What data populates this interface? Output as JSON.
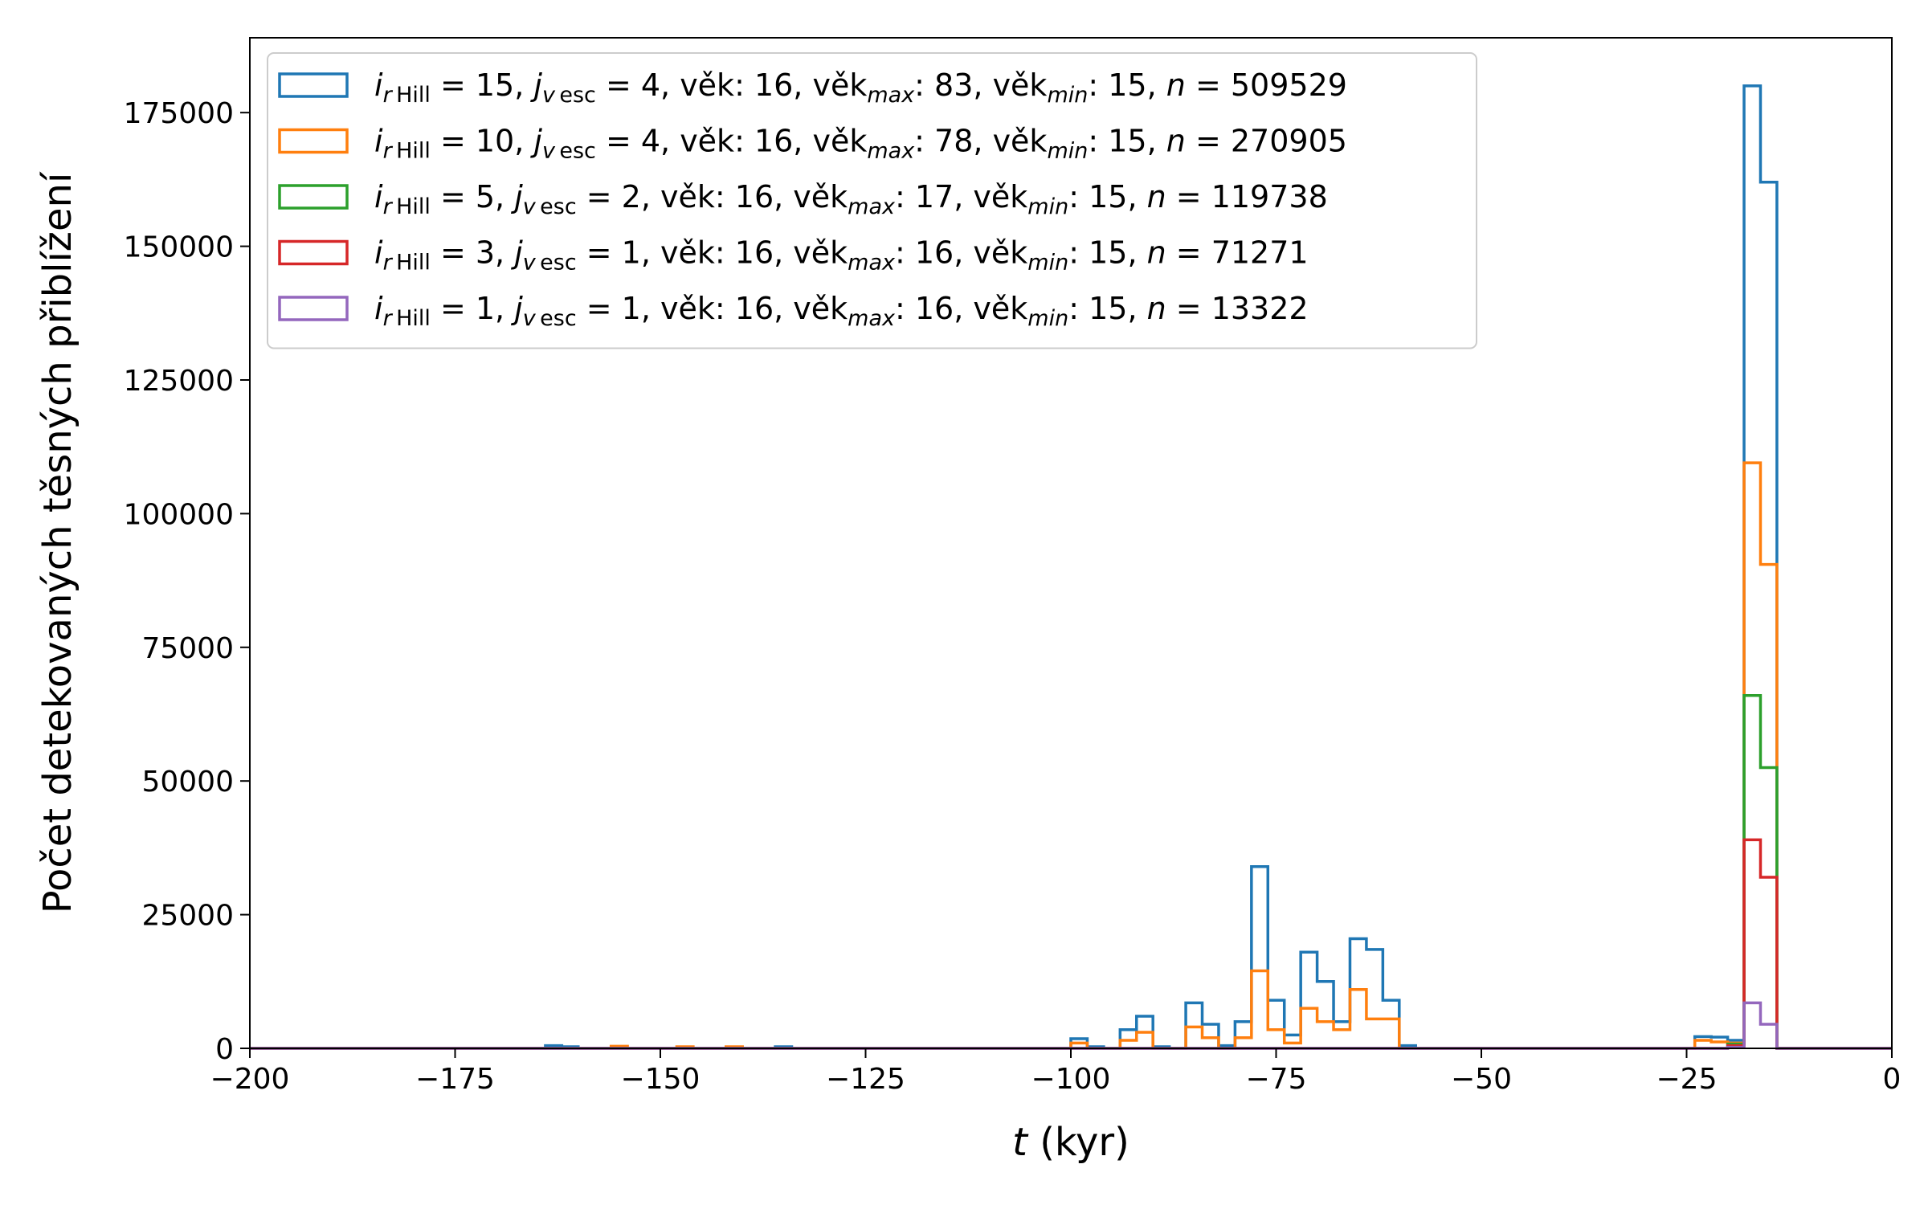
{
  "chart_data": {
    "type": "histogram-step",
    "xlabel": {
      "var": "t",
      "unit": " (kyr)"
    },
    "ylabel": "Počet detekovaných těsných přiblížení",
    "xlim": [
      -200,
      0
    ],
    "ylim": [
      0,
      189000
    ],
    "x_ticks": [
      -200,
      -175,
      -150,
      -125,
      -100,
      -75,
      -50,
      -25,
      0
    ],
    "x_tick_labels": [
      "−200",
      "−175",
      "−150",
      "−125",
      "−100",
      "−75",
      "−50",
      "−25",
      "0"
    ],
    "y_ticks": [
      0,
      25000,
      50000,
      75000,
      100000,
      125000,
      150000,
      175000
    ],
    "y_tick_labels": [
      "0",
      "25000",
      "50000",
      "75000",
      "100000",
      "125000",
      "150000",
      "175000"
    ],
    "grid": false,
    "legend_position": "top-left",
    "bin_width": 2,
    "series": [
      {
        "color": "#1f77b4",
        "legend": {
          "i": "15",
          "j": "4",
          "vek": "16",
          "vek_max": "83",
          "vek_min": "15",
          "n": "509529"
        },
        "bins": [
          [
            -164,
            500
          ],
          [
            -162,
            300
          ],
          [
            -136,
            300
          ],
          [
            -100,
            1800
          ],
          [
            -98,
            300
          ],
          [
            -94,
            3500
          ],
          [
            -92,
            6000
          ],
          [
            -90,
            300
          ],
          [
            -86,
            8500
          ],
          [
            -84,
            4500
          ],
          [
            -82,
            500
          ],
          [
            -80,
            5000
          ],
          [
            -78,
            34000
          ],
          [
            -76,
            9000
          ],
          [
            -74,
            2500
          ],
          [
            -72,
            18000
          ],
          [
            -70,
            12500
          ],
          [
            -68,
            5000
          ],
          [
            -66,
            20500
          ],
          [
            -64,
            18500
          ],
          [
            -62,
            9000
          ],
          [
            -60,
            500
          ],
          [
            -24,
            2200
          ],
          [
            -22,
            2100
          ],
          [
            -20,
            1500
          ],
          [
            -18,
            180000
          ],
          [
            -16,
            162000
          ]
        ]
      },
      {
        "color": "#ff7f0e",
        "legend": {
          "i": "10",
          "j": "4",
          "vek": "16",
          "vek_max": "78",
          "vek_min": "15",
          "n": "270905"
        },
        "bins": [
          [
            -156,
            400
          ],
          [
            -148,
            300
          ],
          [
            -142,
            300
          ],
          [
            -100,
            1000
          ],
          [
            -94,
            1500
          ],
          [
            -92,
            3000
          ],
          [
            -86,
            4000
          ],
          [
            -84,
            2000
          ],
          [
            -80,
            2000
          ],
          [
            -78,
            14500
          ],
          [
            -76,
            3500
          ],
          [
            -74,
            1000
          ],
          [
            -72,
            7500
          ],
          [
            -70,
            5000
          ],
          [
            -68,
            3500
          ],
          [
            -66,
            11000
          ],
          [
            -64,
            5500
          ],
          [
            -62,
            5500
          ],
          [
            -24,
            1500
          ],
          [
            -22,
            1200
          ],
          [
            -20,
            1000
          ],
          [
            -18,
            109500
          ],
          [
            -16,
            90500
          ]
        ]
      },
      {
        "color": "#2ca02c",
        "legend": {
          "i": "5",
          "j": "2",
          "vek": "16",
          "vek_max": "17",
          "vek_min": "15",
          "n": "119738"
        },
        "bins": [
          [
            -20,
            800
          ],
          [
            -18,
            66000
          ],
          [
            -16,
            52500
          ]
        ]
      },
      {
        "color": "#d62728",
        "legend": {
          "i": "3",
          "j": "1",
          "vek": "16",
          "vek_max": "16",
          "vek_min": "15",
          "n": "71271"
        },
        "bins": [
          [
            -20,
            500
          ],
          [
            -18,
            39000
          ],
          [
            -16,
            32000
          ]
        ]
      },
      {
        "color": "#9467bd",
        "legend": {
          "i": "1",
          "j": "1",
          "vek": "16",
          "vek_max": "16",
          "vek_min": "15",
          "n": "13322"
        },
        "bins": [
          [
            -20,
            200
          ],
          [
            -18,
            8500
          ],
          [
            -16,
            4500
          ]
        ]
      }
    ]
  }
}
